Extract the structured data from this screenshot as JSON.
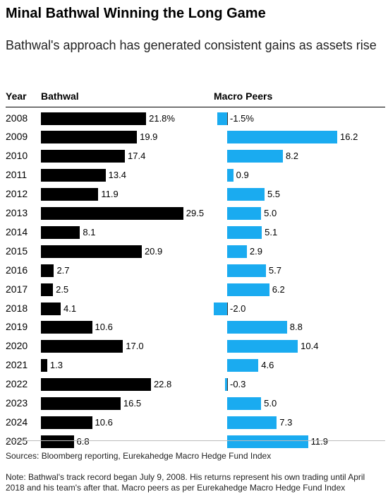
{
  "title": "Minal Bathwal Winning the Long Game",
  "subtitle": "Bathwal's approach has generated consistent gains as assets rise",
  "headers": {
    "year": "Year",
    "left": "Bathwal",
    "right": "Macro Peers"
  },
  "colors": {
    "bathwal": "#000000",
    "peers": "#1aabf0"
  },
  "chart_data": {
    "type": "bar",
    "orientation": "horizontal",
    "categories": [
      "2008",
      "2009",
      "2010",
      "2011",
      "2012",
      "2013",
      "2014",
      "2015",
      "2016",
      "2017",
      "2018",
      "2019",
      "2020",
      "2021",
      "2022",
      "2023",
      "2024",
      "2025"
    ],
    "series": [
      {
        "name": "Bathwal",
        "values": [
          21.8,
          19.9,
          17.4,
          13.4,
          11.9,
          29.5,
          8.1,
          20.9,
          2.7,
          2.5,
          4.1,
          10.6,
          17.0,
          1.3,
          22.8,
          16.5,
          10.6,
          6.8
        ],
        "labels": [
          "21.8%",
          "19.9",
          "17.4",
          "13.4",
          "11.9",
          "29.5",
          "8.1",
          "20.9",
          "2.7",
          "2.5",
          "4.1",
          "10.6",
          "17.0",
          "1.3",
          "22.8",
          "16.5",
          "10.6",
          "6.8"
        ]
      },
      {
        "name": "Macro Peers",
        "values": [
          -1.5,
          16.2,
          8.2,
          0.9,
          5.5,
          5.0,
          5.1,
          2.9,
          5.7,
          6.2,
          -2.0,
          8.8,
          10.4,
          4.6,
          -0.3,
          5.0,
          7.3,
          11.9
        ],
        "labels": [
          "-1.5%",
          "16.2",
          "8.2",
          "0.9",
          "5.5",
          "5.0",
          "5.1",
          "2.9",
          "5.7",
          "6.2",
          "-2.0",
          "8.8",
          "10.4",
          "4.6",
          "-0.3",
          "5.0",
          "7.3",
          "11.9"
        ]
      }
    ]
  },
  "source": "Sources: Bloomberg reporting, Eurekahedge Macro Hedge Fund Index",
  "note": "Note: Bathwal's track record began July 9, 2008. His returns represent his own trading until April 2018 and his team's after that. Macro peers as per Eurekahedge Macro Hedge Fund Index"
}
